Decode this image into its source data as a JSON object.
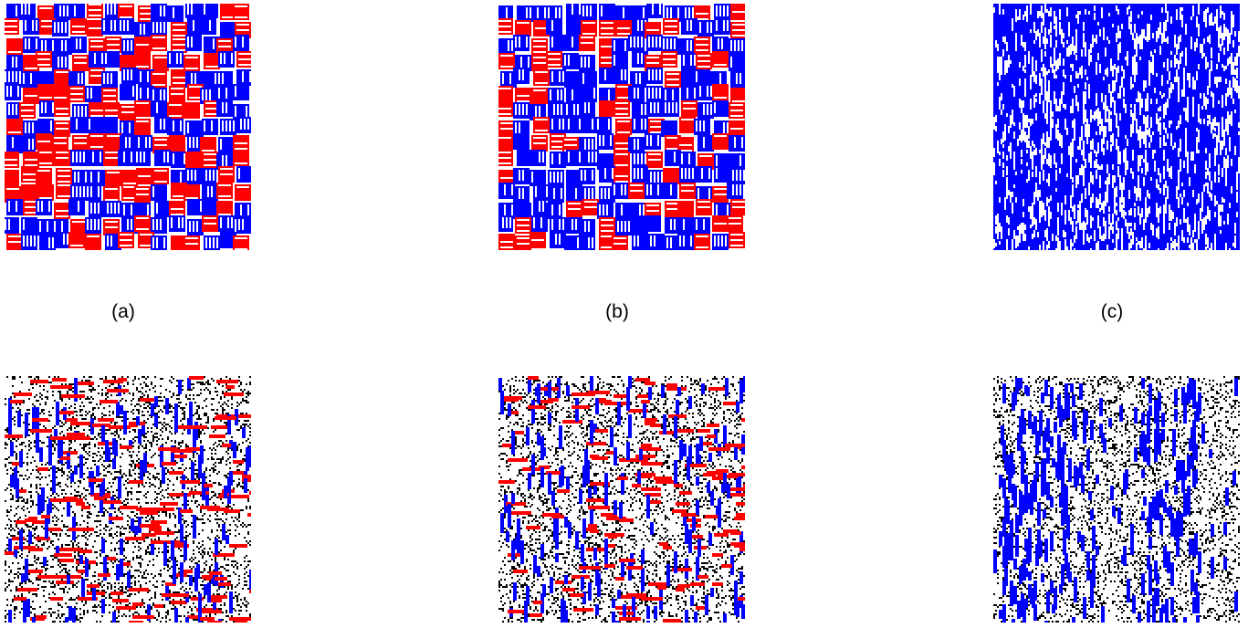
{
  "figure": {
    "captions": [
      "(a)",
      "(b)",
      "(c)"
    ],
    "colors": {
      "horizontal_agent": "#ff0000",
      "vertical_agent": "#0000ff",
      "vacancy_noise": "#000000",
      "background": "#ffffff"
    },
    "panels": [
      {
        "id": "a",
        "kind": "blocks",
        "red_fraction": 0.5,
        "has_noise": false
      },
      {
        "id": "b",
        "kind": "blocks",
        "red_fraction": 0.35,
        "has_noise": false
      },
      {
        "id": "c",
        "kind": "vertical-lines",
        "red_fraction": 0.0,
        "has_noise": false
      },
      {
        "id": "d",
        "kind": "noisy-mixed",
        "red_fraction": 0.5,
        "has_noise": true
      },
      {
        "id": "e",
        "kind": "noisy-mixed",
        "red_fraction": 0.45,
        "has_noise": true
      },
      {
        "id": "f",
        "kind": "noisy-blue-bands",
        "red_fraction": 0.0,
        "has_noise": true
      }
    ]
  }
}
